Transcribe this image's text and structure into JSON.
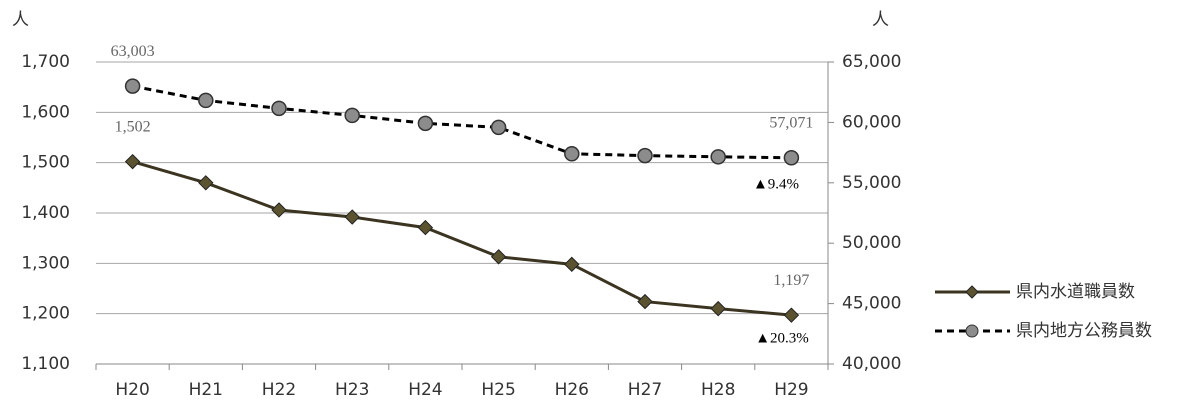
{
  "chart_data": {
    "type": "line",
    "y_label": "人",
    "y2_label": "人",
    "categories": [
      "H20",
      "H21",
      "H22",
      "H23",
      "H24",
      "H25",
      "H26",
      "H27",
      "H28",
      "H29"
    ],
    "series": [
      {
        "name": "県内水道職員数",
        "color": "#3b3421",
        "marker_color": "#5b5330",
        "marker": "diamond",
        "dashed": false,
        "values": [
          1502,
          1460,
          1406,
          1392,
          1371,
          1313,
          1298,
          1224,
          1210,
          1197
        ],
        "value_labels": [
          "1,502",
          null,
          null,
          null,
          null,
          null,
          null,
          null,
          null,
          "1,197"
        ]
      },
      {
        "name": "県内地方公務員数",
        "color": "#000000",
        "marker_color": "#8c8c8c",
        "marker": "circle",
        "dashed": true,
        "axis": "y2",
        "values": [
          63003,
          61820,
          61160,
          60580,
          59920,
          59590,
          57400,
          57250,
          57150,
          57071
        ],
        "value_labels": [
          "63,003",
          null,
          null,
          null,
          null,
          null,
          null,
          null,
          null,
          "57,071"
        ]
      }
    ],
    "annotations": [
      "▲9.4%",
      "▲20.3%"
    ],
    "ylim": [
      1100,
      1700
    ],
    "yticks": [
      {
        "value": 1100,
        "label": "1,100"
      },
      {
        "value": 1200,
        "label": "1,200"
      },
      {
        "value": 1300,
        "label": "1,300"
      },
      {
        "value": 1400,
        "label": "1,400"
      },
      {
        "value": 1500,
        "label": "1,500"
      },
      {
        "value": 1600,
        "label": "1,600"
      },
      {
        "value": 1700,
        "label": "1,700"
      }
    ],
    "y2lim": [
      40000,
      65000
    ],
    "y2ticks": [
      {
        "value": 40000,
        "label": "40,000"
      },
      {
        "value": 45000,
        "label": "45,000"
      },
      {
        "value": 50000,
        "label": "50,000"
      },
      {
        "value": 55000,
        "label": "55,000"
      },
      {
        "value": 60000,
        "label": "60,000"
      },
      {
        "value": 65000,
        "label": "65,000"
      }
    ],
    "grid": true,
    "legend": "right"
  }
}
